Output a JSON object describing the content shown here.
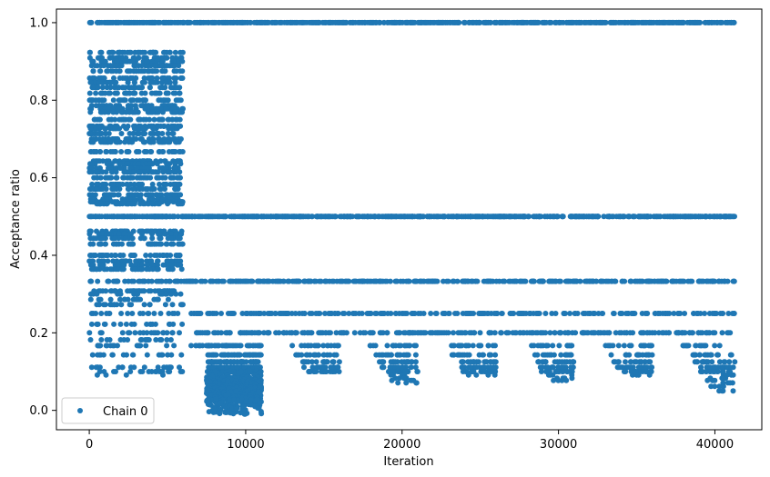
{
  "chart_data": {
    "type": "scatter",
    "xlabel": "Iteration",
    "ylabel": "Acceptance ratio",
    "xlim": [
      -2100,
      43000
    ],
    "ylim": [
      -0.05,
      1.035
    ],
    "x_ticks": [
      0,
      10000,
      20000,
      30000,
      40000
    ],
    "x_tick_labels": [
      "0",
      "10000",
      "20000",
      "30000",
      "40000"
    ],
    "y_ticks": [
      0.0,
      0.2,
      0.4,
      0.6,
      0.8,
      1.0
    ],
    "y_tick_labels": [
      "0.0",
      "0.2",
      "0.4",
      "0.6",
      "0.8",
      "1.0"
    ],
    "grid": false,
    "legend_position": "bottom-left",
    "series": [
      {
        "name": "Chain 0",
        "color": "#1f77b4",
        "marker": "circle",
        "segments": [
          {
            "x_range": [
              0,
              6000
            ],
            "levels": [
              1.0,
              0.923,
              0.909,
              0.9,
              0.889,
              0.875,
              0.857,
              0.846,
              0.833,
              0.818,
              0.8,
              0.786,
              0.778,
              0.769,
              0.75,
              0.733,
              0.727,
              0.714,
              0.7,
              0.692,
              0.667,
              0.643,
              0.636,
              0.625,
              0.615,
              0.6,
              0.583,
              0.571,
              0.556,
              0.545,
              0.538,
              0.533,
              0.5,
              0.462,
              0.455,
              0.444,
              0.429,
              0.4,
              0.385,
              0.375,
              0.364,
              0.333,
              0.308,
              0.3,
              0.286,
              0.273,
              0.25,
              0.222,
              0.2,
              0.182,
              0.167,
              0.143,
              0.111,
              0.1,
              0.091
            ]
          },
          {
            "x_range": [
              6000,
              11000
            ],
            "levels": [
              1.0,
              0.5,
              0.333,
              0.25,
              0.2,
              0.167,
              0.143,
              0.125,
              0.111,
              0.1,
              0.091,
              0.083,
              0.077,
              0.071,
              0.067,
              0.062,
              0.059,
              0.056,
              0.053,
              0.05,
              0.045,
              0.04,
              0.035,
              0.03,
              0.025,
              0.02,
              0.0
            ]
          },
          {
            "x_range": [
              11000,
              16000
            ],
            "levels": [
              1.0,
              0.5,
              0.333,
              0.25,
              0.2,
              0.167,
              0.143,
              0.125,
              0.111,
              0.1
            ]
          },
          {
            "x_range": [
              16000,
              21000
            ],
            "levels": [
              1.0,
              0.5,
              0.333,
              0.25,
              0.2,
              0.167,
              0.143,
              0.125,
              0.111,
              0.1,
              0.091,
              0.083,
              0.077,
              0.071
            ]
          },
          {
            "x_range": [
              21000,
              26000
            ],
            "levels": [
              1.0,
              0.5,
              0.333,
              0.25,
              0.2,
              0.167,
              0.143,
              0.125,
              0.111,
              0.1,
              0.091
            ]
          },
          {
            "x_range": [
              26000,
              31000
            ],
            "levels": [
              1.0,
              0.5,
              0.333,
              0.25,
              0.2,
              0.167,
              0.143,
              0.125,
              0.111,
              0.1,
              0.091,
              0.083,
              0.077
            ]
          },
          {
            "x_range": [
              31000,
              36000
            ],
            "levels": [
              1.0,
              0.5,
              0.333,
              0.25,
              0.2,
              0.167,
              0.143,
              0.125,
              0.111,
              0.1,
              0.091
            ]
          },
          {
            "x_range": [
              36000,
              41300
            ],
            "levels": [
              1.0,
              0.5,
              0.333,
              0.25,
              0.2,
              0.167,
              0.143,
              0.125,
              0.111,
              0.1,
              0.091,
              0.083,
              0.077,
              0.071,
              0.062,
              0.05
            ]
          }
        ]
      }
    ]
  }
}
